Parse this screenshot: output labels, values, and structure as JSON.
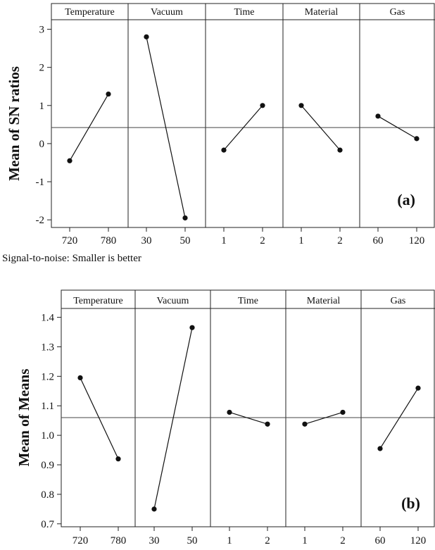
{
  "chart_data": [
    {
      "type": "line",
      "ylabel": "Mean of SN ratios",
      "tag": "(a)",
      "note": "Signal-to-noise: Smaller is better",
      "ylim": [
        -2.2,
        3.25
      ],
      "yticks": [
        -2,
        -1,
        0,
        1,
        2,
        3
      ],
      "ytick_labels": [
        "-2",
        "-1",
        "0",
        "1",
        "2",
        "3"
      ],
      "mean": 0.42,
      "grid": false,
      "panels": [
        {
          "name": "Temperature",
          "categories": [
            "720",
            "780"
          ],
          "values": [
            -0.45,
            1.3
          ]
        },
        {
          "name": "Vacuum",
          "categories": [
            "30",
            "50"
          ],
          "values": [
            2.8,
            -1.95
          ]
        },
        {
          "name": "Time",
          "categories": [
            "1",
            "2"
          ],
          "values": [
            -0.17,
            1.0
          ]
        },
        {
          "name": "Material",
          "categories": [
            "1",
            "2"
          ],
          "values": [
            1.0,
            -0.17
          ]
        },
        {
          "name": "Gas",
          "categories": [
            "60",
            "120"
          ],
          "values": [
            0.72,
            0.13
          ]
        }
      ]
    },
    {
      "type": "line",
      "ylabel": "Mean of Means",
      "tag": "(b)",
      "ylim": [
        0.69,
        1.43
      ],
      "yticks": [
        0.7,
        0.8,
        0.9,
        1.0,
        1.1,
        1.2,
        1.3,
        1.4
      ],
      "ytick_labels": [
        "0.7",
        "0.8",
        "0.9",
        "1.0",
        "1.1",
        "1.2",
        "1.3",
        "1.4"
      ],
      "mean": 1.06,
      "grid": false,
      "panels": [
        {
          "name": "Temperature",
          "categories": [
            "720",
            "780"
          ],
          "values": [
            1.195,
            0.92
          ]
        },
        {
          "name": "Vacuum",
          "categories": [
            "30",
            "50"
          ],
          "values": [
            0.75,
            1.365
          ]
        },
        {
          "name": "Time",
          "categories": [
            "1",
            "2"
          ],
          "values": [
            1.078,
            1.038
          ]
        },
        {
          "name": "Material",
          "categories": [
            "1",
            "2"
          ],
          "values": [
            1.038,
            1.078
          ]
        },
        {
          "name": "Gas",
          "categories": [
            "60",
            "120"
          ],
          "values": [
            0.955,
            1.16
          ]
        }
      ]
    }
  ]
}
